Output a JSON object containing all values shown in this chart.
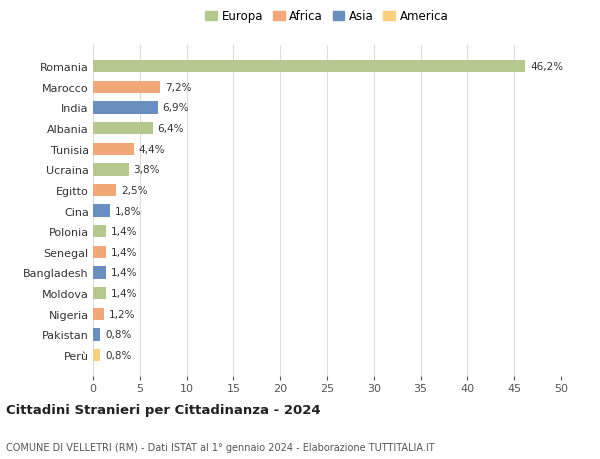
{
  "countries": [
    "Romania",
    "Marocco",
    "India",
    "Albania",
    "Tunisia",
    "Ucraina",
    "Egitto",
    "Cina",
    "Polonia",
    "Senegal",
    "Bangladesh",
    "Moldova",
    "Nigeria",
    "Pakistan",
    "Perù"
  ],
  "values": [
    46.2,
    7.2,
    6.9,
    6.4,
    4.4,
    3.8,
    2.5,
    1.8,
    1.4,
    1.4,
    1.4,
    1.4,
    1.2,
    0.8,
    0.8
  ],
  "labels": [
    "46,2%",
    "7,2%",
    "6,9%",
    "6,4%",
    "4,4%",
    "3,8%",
    "2,5%",
    "1,8%",
    "1,4%",
    "1,4%",
    "1,4%",
    "1,4%",
    "1,2%",
    "0,8%",
    "0,8%"
  ],
  "colors": [
    "#b5c98e",
    "#f0a878",
    "#6a8fbf",
    "#b5c98e",
    "#f0a878",
    "#b5c98e",
    "#f0a878",
    "#6a8fbf",
    "#b5c98e",
    "#f0a878",
    "#6a8fbf",
    "#b5c98e",
    "#f0a878",
    "#6a8fbf",
    "#f5d080"
  ],
  "continents": [
    "Europa",
    "Africa",
    "Asia",
    "Europa",
    "Africa",
    "Europa",
    "Africa",
    "Asia",
    "Europa",
    "Africa",
    "Asia",
    "Europa",
    "Africa",
    "Asia",
    "America"
  ],
  "legend_labels": [
    "Europa",
    "Africa",
    "Asia",
    "America"
  ],
  "legend_colors": [
    "#b5c98e",
    "#f0a878",
    "#6a8fbf",
    "#f5d080"
  ],
  "title1": "Cittadini Stranieri per Cittadinanza - 2024",
  "title2": "COMUNE DI VELLETRI (RM) - Dati ISTAT al 1° gennaio 2024 - Elaborazione TUTTITALIA.IT",
  "xlim": [
    0,
    50
  ],
  "xticks": [
    0,
    5,
    10,
    15,
    20,
    25,
    30,
    35,
    40,
    45,
    50
  ],
  "background_color": "#ffffff",
  "grid_color": "#dddddd"
}
